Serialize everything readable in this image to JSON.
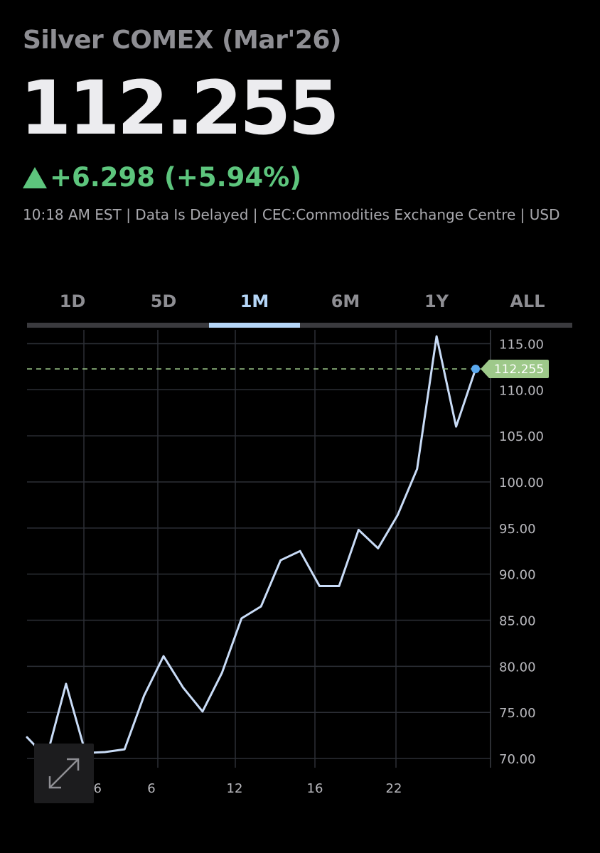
{
  "header": {
    "title": "Silver COMEX (Mar'26)",
    "price": "112.255",
    "change": "+6.298 (+5.94%)",
    "change_direction": "up",
    "meta": "10:18 AM EST | Data Is Delayed | CEC:Commodities Exchange Centre | USD"
  },
  "tabs": [
    {
      "label": "1D",
      "active": false
    },
    {
      "label": "5D",
      "active": false
    },
    {
      "label": "1M",
      "active": true
    },
    {
      "label": "6M",
      "active": false
    },
    {
      "label": "1Y",
      "active": false
    },
    {
      "label": "ALL",
      "active": false
    }
  ],
  "colors": {
    "up": "#5dc57d",
    "accent": "#b5d6f7",
    "line": "#c9dcf7",
    "last_price_tag": "#9ec98a",
    "marker": "#5aa8ee"
  },
  "icons": {
    "expand": "expand-arrows-icon"
  },
  "chart_data": {
    "type": "line",
    "x_tick_labels": [
      "2026",
      "6",
      "12",
      "16",
      "22"
    ],
    "y_tick_labels": [
      "70.00",
      "75.00",
      "80.00",
      "85.00",
      "90.00",
      "95.00",
      "100.00",
      "105.00",
      "110.00",
      "115.00"
    ],
    "ylim": [
      69,
      116.5
    ],
    "last_price_label": "112.255",
    "series": [
      {
        "values": [
          72.3,
          70.1,
          78.1,
          70.6,
          70.7,
          71.0,
          76.8,
          81.1,
          77.7,
          75.1,
          79.3,
          85.2,
          86.5,
          91.5,
          92.5,
          88.7,
          88.7,
          94.8,
          92.8,
          96.4,
          101.4,
          115.8,
          106.0,
          112.255
        ]
      }
    ],
    "grid": true,
    "legend": "none"
  }
}
